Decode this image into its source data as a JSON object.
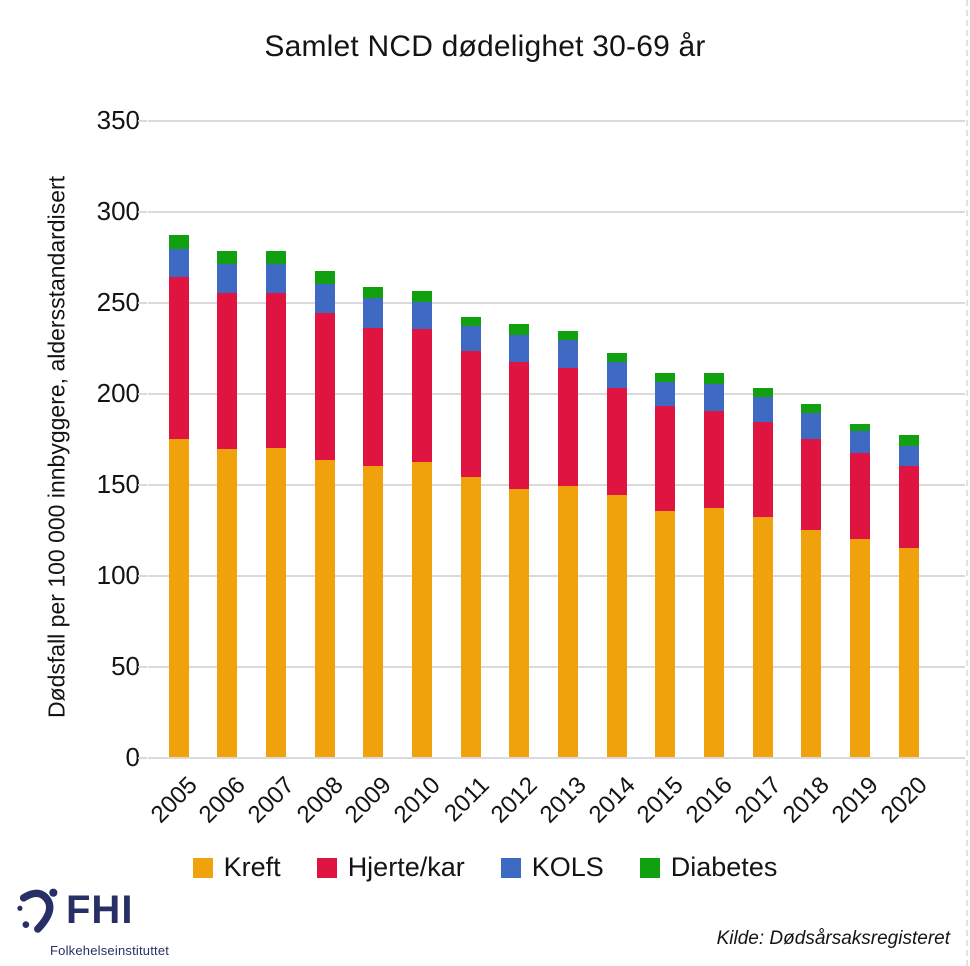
{
  "title": "Samlet NCD dødelighet 30-69 år",
  "chart_data": {
    "type": "bar",
    "stacked": true,
    "title": "Samlet NCD dødelighet 30-69 år",
    "xlabel": "",
    "ylabel": "Dødsfall per 100 000 innbyggere, aldersstandardisert",
    "ylim": [
      0,
      350
    ],
    "ytick_step": 50,
    "grid": true,
    "legend_position": "bottom",
    "categories": [
      "2005",
      "2006",
      "2007",
      "2008",
      "2009",
      "2010",
      "2011",
      "2012",
      "2013",
      "2014",
      "2015",
      "2016",
      "2017",
      "2018",
      "2019",
      "2020"
    ],
    "series": [
      {
        "name": "Kreft",
        "color": "#EFA20B",
        "values": [
          175,
          169,
          170,
          163,
          160,
          162,
          154,
          147,
          149,
          144,
          135,
          137,
          132,
          125,
          120,
          115
        ]
      },
      {
        "name": "Hjerte/kar",
        "color": "#E01440",
        "values": [
          89,
          86,
          85,
          81,
          76,
          73,
          69,
          70,
          65,
          59,
          58,
          53,
          52,
          50,
          47,
          45
        ]
      },
      {
        "name": "KOLS",
        "color": "#3F6AC4",
        "values": [
          15,
          16,
          16,
          16,
          16,
          15,
          14,
          15,
          15,
          14,
          13,
          15,
          14,
          14,
          12,
          11
        ]
      },
      {
        "name": "Diabetes",
        "color": "#10A010",
        "values": [
          8,
          7,
          7,
          7,
          6,
          6,
          5,
          6,
          5,
          5,
          5,
          6,
          5,
          5,
          4,
          6
        ]
      }
    ]
  },
  "footer": {
    "source": "Kilde: Dødsårsaksregisteret",
    "logo": {
      "abbr": "FHI",
      "name": "Folkehelseinstituttet",
      "color": "#272f66"
    }
  }
}
